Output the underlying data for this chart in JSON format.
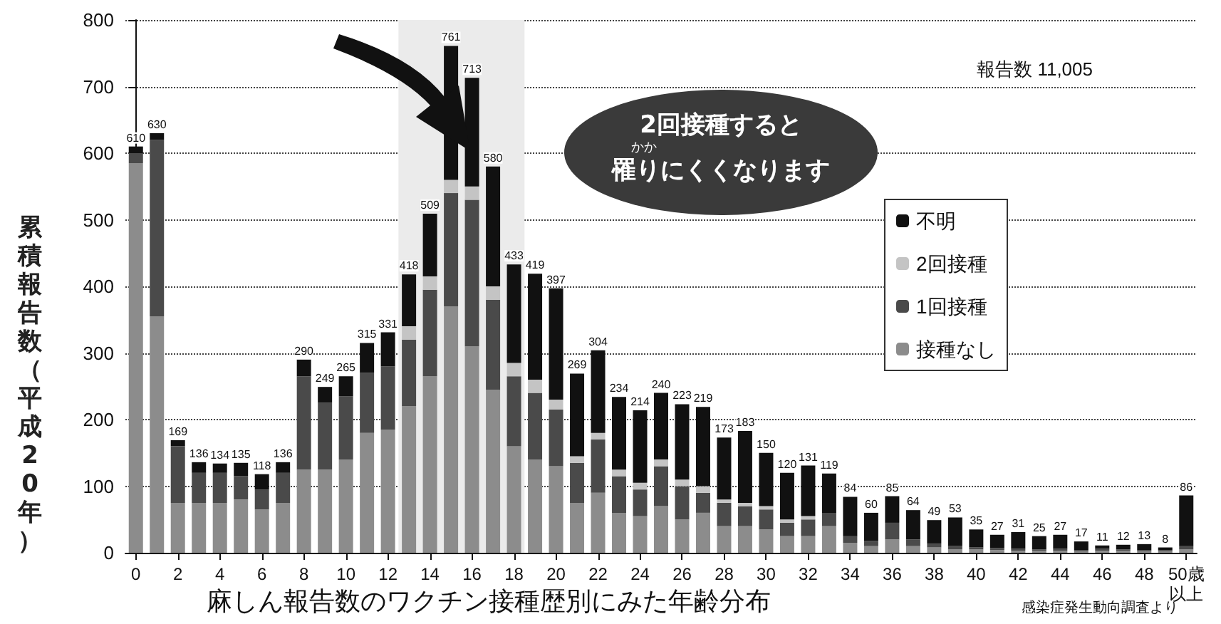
{
  "chart_data": {
    "type": "bar",
    "stacked": true,
    "title": "麻しん報告数のワクチン接種歴別にみた年齢分布",
    "ylabel": "累積報告数（平成20年）",
    "x": [
      0,
      1,
      2,
      3,
      4,
      5,
      6,
      7,
      8,
      9,
      10,
      11,
      12,
      13,
      14,
      15,
      16,
      17,
      18,
      19,
      20,
      21,
      22,
      23,
      24,
      25,
      26,
      27,
      28,
      29,
      30,
      31,
      32,
      33,
      34,
      35,
      36,
      37,
      38,
      39,
      40,
      41,
      42,
      43,
      44,
      45,
      46,
      47,
      48,
      49,
      50
    ],
    "xlim": [
      -0.5,
      50.5
    ],
    "xticks": [
      0,
      2,
      4,
      6,
      8,
      10,
      12,
      14,
      16,
      18,
      20,
      22,
      24,
      26,
      28,
      30,
      32,
      34,
      36,
      38,
      40,
      42,
      44,
      46,
      48,
      {
        "value": 50,
        "label": "50歳以上"
      }
    ],
    "ylim": [
      0,
      800
    ],
    "yticks": [
      0,
      100,
      200,
      300,
      400,
      500,
      600,
      700,
      800
    ],
    "grid": "y",
    "legend": "top right",
    "series": [
      {
        "name": "接種なし",
        "color": "#8c8c8c",
        "values": [
          585,
          355,
          75,
          75,
          75,
          80,
          65,
          75,
          125,
          125,
          140,
          180,
          185,
          220,
          265,
          370,
          310,
          245,
          160,
          140,
          130,
          75,
          90,
          60,
          55,
          70,
          50,
          60,
          40,
          40,
          35,
          25,
          25,
          40,
          15,
          10,
          20,
          10,
          8,
          5,
          5,
          4,
          3,
          3,
          3,
          2,
          3,
          3,
          2,
          2,
          5
        ]
      },
      {
        "name": "1回接種",
        "color": "#4a4a4a",
        "values": [
          15,
          265,
          85,
          45,
          45,
          35,
          30,
          45,
          140,
          100,
          95,
          90,
          95,
          100,
          130,
          170,
          220,
          135,
          105,
          100,
          85,
          60,
          80,
          55,
          40,
          60,
          50,
          30,
          35,
          30,
          30,
          20,
          25,
          20,
          10,
          8,
          25,
          10,
          6,
          5,
          3,
          3,
          3,
          2,
          3,
          2,
          3,
          2,
          2,
          2,
          5
        ]
      },
      {
        "name": "2回接種",
        "color": "#c4c4c4",
        "values": [
          0,
          0,
          0,
          0,
          0,
          0,
          0,
          0,
          0,
          0,
          0,
          0,
          0,
          20,
          20,
          20,
          20,
          20,
          20,
          20,
          15,
          10,
          10,
          10,
          10,
          10,
          10,
          10,
          5,
          5,
          5,
          5,
          5,
          0,
          0,
          0,
          0,
          0,
          0,
          0,
          0,
          0,
          0,
          0,
          0,
          0,
          0,
          0,
          0,
          0,
          0
        ]
      },
      {
        "name": "不明",
        "color": "#111111",
        "values": [
          10,
          10,
          9,
          16,
          14,
          20,
          23,
          16,
          25,
          24,
          30,
          45,
          51,
          78,
          94,
          201,
          163,
          180,
          148,
          159,
          167,
          124,
          124,
          109,
          109,
          100,
          113,
          119,
          93,
          108,
          80,
          70,
          76,
          59,
          59,
          42,
          40,
          44,
          35,
          43,
          27,
          20,
          25,
          20,
          21,
          13,
          5,
          7,
          9,
          4,
          76
        ]
      }
    ],
    "totals": [
      "610",
      "630",
      "169",
      "136",
      "134",
      "135",
      "118",
      "136",
      "290",
      "249",
      "265",
      "315",
      "331",
      "418",
      "509",
      "761",
      "713",
      "580",
      "433",
      "419",
      "397",
      "269",
      "304",
      "234",
      "214",
      "240",
      "223",
      "219",
      "173",
      "183",
      "150",
      "120",
      "131",
      "119",
      "84",
      "60",
      "85",
      "64",
      "49",
      "53",
      "35",
      "27",
      "31",
      "25",
      "27",
      "17",
      "11",
      "12",
      "13",
      "8",
      "86"
    ],
    "bands": [
      {
        "axis": "x",
        "from": 12.5,
        "to": 18.5,
        "color": "#ebebeb"
      }
    ],
    "annotations": [
      "報告数 11,005",
      "2回接種すると",
      "かか",
      "罹りにくくなります",
      "感染症発生動向調査より"
    ]
  }
}
